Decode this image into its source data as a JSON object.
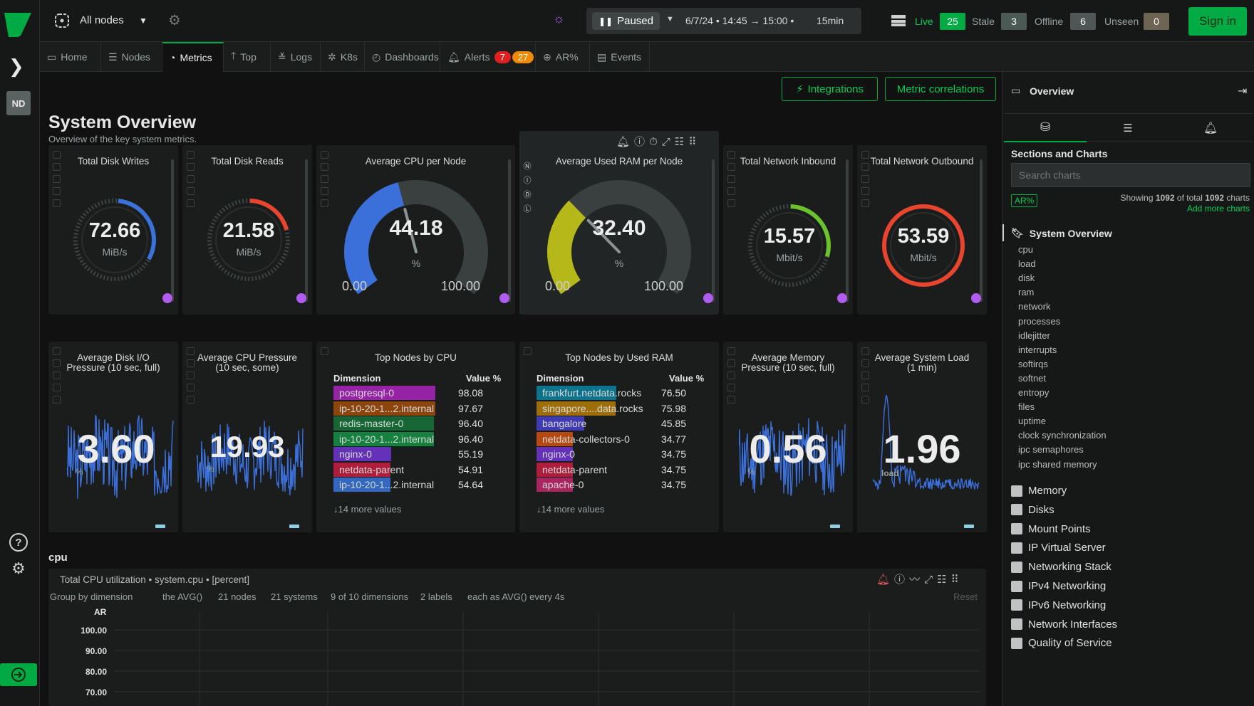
{
  "topbar": {
    "space": "All nodes",
    "paused": "Paused",
    "time_range": "6/7/24 • 14:45 → 15:00 •",
    "duration": "15min",
    "live_label": "Live",
    "live_count": "25",
    "stale_label": "Stale",
    "stale_count": "3",
    "offline_label": "Offline",
    "offline_count": "6",
    "unseen_label": "Unseen",
    "unseen_count": "0",
    "signin": "Sign in"
  },
  "rail": {
    "nd": "ND"
  },
  "tabs": [
    {
      "label": "Home"
    },
    {
      "label": "Nodes"
    },
    {
      "label": "Metrics"
    },
    {
      "label": "Top"
    },
    {
      "label": "Logs"
    },
    {
      "label": "K8s"
    },
    {
      "label": "Dashboards"
    },
    {
      "label": "Alerts"
    },
    {
      "label": "AR%"
    },
    {
      "label": "Events"
    }
  ],
  "alerts": {
    "critical": "7",
    "warning": "27"
  },
  "actions": {
    "integrations": "Integrations",
    "correlations": "Metric correlations"
  },
  "overview": {
    "title": "System Overview",
    "subtitle": "Overview of the key system metrics."
  },
  "cards": {
    "disk_writes": {
      "title": "Total Disk Writes",
      "value": "72.66",
      "unit": "MiB/s"
    },
    "disk_reads": {
      "title": "Total Disk Reads",
      "value": "21.58",
      "unit": "MiB/s"
    },
    "cpu": {
      "title": "Average CPU per Node",
      "value": "44.18",
      "unit": "%",
      "min": "0.00",
      "max": "100.00",
      "fraction": 0.4418
    },
    "ram": {
      "title": "Average Used RAM per Node",
      "value": "32.40",
      "unit": "%",
      "min": "0.00",
      "max": "100.00",
      "fraction": 0.324
    },
    "net_in": {
      "title": "Total Network Inbound",
      "value": "15.57",
      "unit": "Mbit/s"
    },
    "net_out": {
      "title": "Total Network Outbound",
      "value": "53.59",
      "unit": "Mbit/s"
    },
    "disk_io_pressure": {
      "title": "Average Disk I/O Pressure (10 sec, full)",
      "value": "3.60",
      "unit": "%"
    },
    "cpu_pressure": {
      "title": "Average CPU Pressure (10 sec, some)",
      "value": "19.93",
      "unit": "%"
    },
    "mem_pressure": {
      "title": "Average Memory Pressure (10 sec, full)",
      "value": "0.56",
      "unit": "%"
    },
    "sys_load": {
      "title": "Average System Load (1 min)",
      "value": "1.96",
      "unit": "load"
    }
  },
  "top_cpu": {
    "title": "Top Nodes by CPU",
    "col_dim": "Dimension",
    "col_val": "Value %",
    "rows": [
      {
        "name": "postgresql-0",
        "value": "98.08",
        "color": "#c026d3"
      },
      {
        "name": "ip-10-20-1...2.internal",
        "value": "97.67",
        "color": "#b45309"
      },
      {
        "name": "redis-master-0",
        "value": "96.40",
        "color": "#15803d"
      },
      {
        "name": "ip-10-20-1...2.internal",
        "value": "96.40",
        "color": "#16a34a"
      },
      {
        "name": "nginx-0",
        "value": "55.19",
        "color": "#7c3aed"
      },
      {
        "name": "netdata-parent",
        "value": "54.91",
        "color": "#e11d48"
      },
      {
        "name": "ip-10-20-1...2.internal",
        "value": "54.64",
        "color": "#3b82f6"
      }
    ],
    "more": "↓14 more values"
  },
  "top_ram": {
    "title": "Top Nodes by Used RAM",
    "col_dim": "Dimension",
    "col_val": "Value %",
    "rows": [
      {
        "name": "frankfurt.netdata.rocks",
        "value": "76.50",
        "color": "#0891b2"
      },
      {
        "name": "singapore....data.rocks",
        "value": "75.98",
        "color": "#ca8a04"
      },
      {
        "name": "bangalore",
        "value": "45.85",
        "color": "#4f46e5"
      },
      {
        "name": "netdata-collectors-0",
        "value": "34.77",
        "color": "#ea580c"
      },
      {
        "name": "nginx-0",
        "value": "34.75",
        "color": "#7c3aed"
      },
      {
        "name": "netdata-parent",
        "value": "34.75",
        "color": "#e11d48"
      },
      {
        "name": "apache-0",
        "value": "34.75",
        "color": "#db2777"
      }
    ],
    "more": "↓14 more values"
  },
  "cpu_chart": {
    "section": "cpu",
    "title": "Total CPU utilization • system.cpu • [percent]",
    "filters": {
      "group": "Group by dimension",
      "agg": "the AVG()",
      "nodes": "21 nodes",
      "systems": "21 systems",
      "dims": "9 of 10 dimensions",
      "labels": "2 labels",
      "every": "each as AVG() every 4s",
      "reset": "Reset"
    },
    "y_label": "AR",
    "y_ticks": [
      "100.00",
      "90.00",
      "80.00",
      "70.00"
    ]
  },
  "rpanel": {
    "title": "Overview",
    "sections_title": "Sections and Charts",
    "search_placeholder": "Search charts",
    "ar_badge": "AR%",
    "showing_pre": "Showing",
    "showing_n": "1092",
    "showing_mid": "of total",
    "showing_total": "1092",
    "showing_post": "charts",
    "add_more": "Add more charts",
    "current": "System Overview",
    "sub_items": [
      "cpu",
      "load",
      "disk",
      "ram",
      "network",
      "processes",
      "idlejitter",
      "interrupts",
      "softirqs",
      "softnet",
      "entropy",
      "files",
      "uptime",
      "clock synchronization",
      "ipc semaphores",
      "ipc shared memory"
    ],
    "groups": [
      "Memory",
      "Disks",
      "Mount Points",
      "IP Virtual Server",
      "Networking Stack",
      "IPv4 Networking",
      "IPv6 Networking",
      "Network Interfaces",
      "Quality of Service"
    ]
  }
}
